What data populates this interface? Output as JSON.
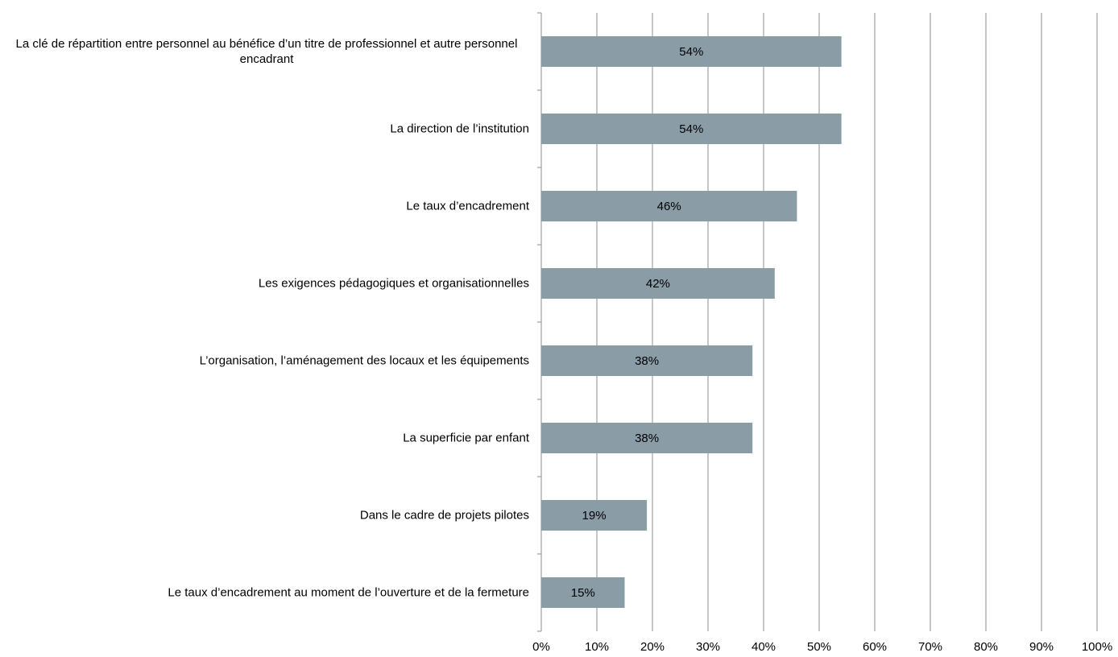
{
  "chart_data": {
    "type": "hbar",
    "categories": [
      "La clé de répartition entre personnel au bénéfice d’un titre de professionnel et autre personnel encadrant",
      "La direction de l’institution",
      "Le taux d’encadrement",
      "Les exigences pédagogiques et organisationnelles",
      "L’organisation, l’aménagement des locaux et les équipements",
      "La superficie par enfant",
      "Dans le cadre de projets pilotes",
      "Le taux d’encadrement au moment de l’ouverture et de la fermeture"
    ],
    "values": [
      54,
      54,
      46,
      42,
      38,
      38,
      19,
      15
    ],
    "value_labels": [
      "54%",
      "54%",
      "46%",
      "42%",
      "38%",
      "38%",
      "19%",
      "15%"
    ],
    "color": "#8a9ca6",
    "xlim": [
      0,
      100
    ],
    "xticks": [
      {
        "value": 0,
        "label": "0%"
      },
      {
        "value": 10,
        "label": "10%"
      },
      {
        "value": 20,
        "label": "20%"
      },
      {
        "value": 30,
        "label": "30%"
      },
      {
        "value": 40,
        "label": "40%"
      },
      {
        "value": 50,
        "label": "50%"
      },
      {
        "value": 60,
        "label": "60%"
      },
      {
        "value": 70,
        "label": "70%"
      },
      {
        "value": 80,
        "label": "80%"
      },
      {
        "value": 90,
        "label": "90%"
      },
      {
        "value": 100,
        "label": "100%"
      }
    ],
    "grid": true
  }
}
